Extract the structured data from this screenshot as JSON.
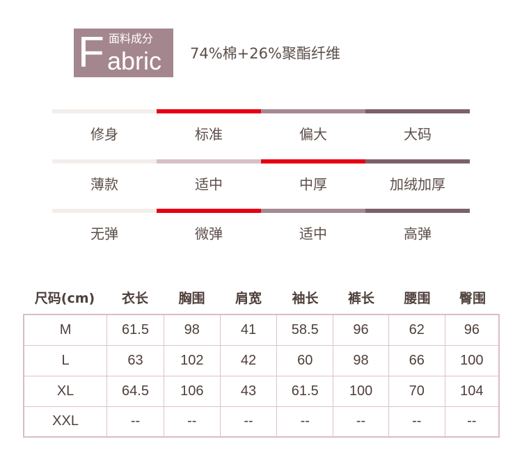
{
  "fabric": {
    "badge_cn": "面料成分",
    "badge_letter": "F",
    "badge_rest": "abric",
    "composition": "74%棉+26%聚酯纤维"
  },
  "scales": [
    {
      "name": "fit",
      "options": [
        "修身",
        "标准",
        "偏大",
        "大码"
      ],
      "selected": "标准",
      "colors": [
        "#f3eeeb",
        "#e60012",
        "#a58991",
        "#7b6169"
      ]
    },
    {
      "name": "thickness",
      "options": [
        "薄款",
        "适中",
        "中厚",
        "加绒加厚"
      ],
      "selected": "中厚",
      "colors": [
        "#f3eeeb",
        "#d6c0c6",
        "#e60012",
        "#7b6169"
      ]
    },
    {
      "name": "elasticity",
      "options": [
        "无弹",
        "微弹",
        "适中",
        "高弹"
      ],
      "selected": "微弹",
      "colors": [
        "#f3eeeb",
        "#e60012",
        "#a58991",
        "#7b6169"
      ]
    }
  ],
  "size_table": {
    "headers": [
      "尺码(cm)",
      "衣长",
      "胸围",
      "肩宽",
      "袖长",
      "裤长",
      "腰围",
      "臀围"
    ],
    "rows": [
      [
        "M",
        "61.5",
        "98",
        "41",
        "58.5",
        "96",
        "62",
        "96"
      ],
      [
        "L",
        "63",
        "102",
        "42",
        "60",
        "98",
        "66",
        "100"
      ],
      [
        "XL",
        "64.5",
        "106",
        "43",
        "61.5",
        "100",
        "70",
        "104"
      ],
      [
        "XXL",
        "--",
        "--",
        "--",
        "--",
        "--",
        "--",
        "--"
      ]
    ]
  }
}
